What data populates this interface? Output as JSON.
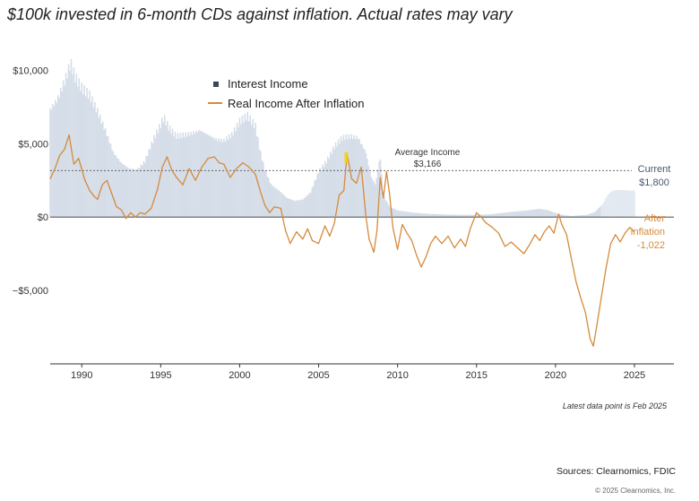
{
  "chart_data": {
    "type": "area",
    "title": "$100k invested in 6-month CDs against inflation. Actual rates may vary",
    "ylim": [
      -10000,
      11000
    ],
    "xlim": [
      1988,
      2027.5
    ],
    "y_ticks": [
      {
        "value": 10000,
        "label": "$10,000"
      },
      {
        "value": 5000,
        "label": "$5,000"
      },
      {
        "value": 0,
        "label": "$0"
      },
      {
        "value": -5000,
        "label": "−$5,000"
      }
    ],
    "x_ticks": [
      {
        "value": 1990,
        "label": "1990"
      },
      {
        "value": 1995,
        "label": "1995"
      },
      {
        "value": 2000,
        "label": "2000"
      },
      {
        "value": 2005,
        "label": "2005"
      },
      {
        "value": 2010,
        "label": "2010"
      },
      {
        "value": 2015,
        "label": "2015"
      },
      {
        "value": 2020,
        "label": "2020"
      },
      {
        "value": 2025,
        "label": "2025"
      }
    ],
    "legend": [
      "Interest Income",
      "Real Income After Inflation"
    ],
    "series": [
      {
        "name": "Interest Income",
        "color": "#d5dde8",
        "points": [
          [
            1988,
            7300
          ],
          [
            1988.5,
            8100
          ],
          [
            1989,
            9500
          ],
          [
            1989.3,
            10500
          ],
          [
            1989.6,
            9500
          ],
          [
            1990,
            8800
          ],
          [
            1990.5,
            8300
          ],
          [
            1991,
            7200
          ],
          [
            1991.5,
            5900
          ],
          [
            1992,
            4400
          ],
          [
            1992.5,
            3700
          ],
          [
            1993,
            3300
          ],
          [
            1993.5,
            3200
          ],
          [
            1994,
            3800
          ],
          [
            1994.5,
            5200
          ],
          [
            1995,
            6300
          ],
          [
            1995.2,
            6800
          ],
          [
            1995.5,
            6100
          ],
          [
            1996,
            5500
          ],
          [
            1996.5,
            5600
          ],
          [
            1997,
            5700
          ],
          [
            1997.5,
            5900
          ],
          [
            1998,
            5600
          ],
          [
            1998.5,
            5300
          ],
          [
            1999,
            5200
          ],
          [
            1999.5,
            5600
          ],
          [
            2000,
            6500
          ],
          [
            2000.5,
            6900
          ],
          [
            2001,
            6200
          ],
          [
            2001.3,
            4500
          ],
          [
            2001.6,
            3200
          ],
          [
            2002,
            2200
          ],
          [
            2002.5,
            1800
          ],
          [
            2003,
            1300
          ],
          [
            2003.5,
            1100
          ],
          [
            2004,
            1200
          ],
          [
            2004.5,
            1700
          ],
          [
            2005,
            3100
          ],
          [
            2005.5,
            3800
          ],
          [
            2006,
            4800
          ],
          [
            2006.5,
            5400
          ],
          [
            2007,
            5500
          ],
          [
            2007.5,
            5400
          ],
          [
            2008,
            4400
          ],
          [
            2008.3,
            2800
          ],
          [
            2008.6,
            2200
          ],
          [
            2008.9,
            4200
          ],
          [
            2009.1,
            1500
          ],
          [
            2009.5,
            700
          ],
          [
            2010,
            450
          ],
          [
            2011,
            300
          ],
          [
            2012,
            220
          ],
          [
            2013,
            180
          ],
          [
            2014,
            150
          ],
          [
            2015,
            150
          ],
          [
            2016,
            200
          ],
          [
            2017,
            330
          ],
          [
            2018,
            430
          ],
          [
            2019,
            560
          ],
          [
            2019.5,
            480
          ],
          [
            2020,
            280
          ],
          [
            2020.5,
            130
          ],
          [
            2021,
            70
          ],
          [
            2022,
            150
          ],
          [
            2022.5,
            350
          ],
          [
            2023,
            900
          ],
          [
            2023.3,
            1500
          ],
          [
            2023.6,
            1800
          ],
          [
            2024,
            1850
          ],
          [
            2025,
            1800
          ]
        ]
      },
      {
        "name": "Real Income After Inflation",
        "color": "#d48a3c",
        "points": [
          [
            1988,
            2600
          ],
          [
            1988.3,
            3300
          ],
          [
            1988.6,
            4200
          ],
          [
            1988.9,
            4600
          ],
          [
            1989.2,
            5600
          ],
          [
            1989.5,
            3600
          ],
          [
            1989.8,
            4000
          ],
          [
            1990.2,
            2500
          ],
          [
            1990.5,
            1800
          ],
          [
            1990.8,
            1400
          ],
          [
            1991,
            1200
          ],
          [
            1991.3,
            2200
          ],
          [
            1991.6,
            2500
          ],
          [
            1991.9,
            1600
          ],
          [
            1992.2,
            700
          ],
          [
            1992.5,
            500
          ],
          [
            1992.8,
            -100
          ],
          [
            1993.1,
            300
          ],
          [
            1993.4,
            0
          ],
          [
            1993.7,
            300
          ],
          [
            1994,
            200
          ],
          [
            1994.4,
            600
          ],
          [
            1994.8,
            1900
          ],
          [
            1995.1,
            3400
          ],
          [
            1995.4,
            4100
          ],
          [
            1995.7,
            3200
          ],
          [
            1996,
            2700
          ],
          [
            1996.4,
            2200
          ],
          [
            1996.8,
            3300
          ],
          [
            1997.2,
            2500
          ],
          [
            1997.6,
            3400
          ],
          [
            1998,
            4000
          ],
          [
            1998.4,
            4100
          ],
          [
            1998.7,
            3700
          ],
          [
            1999,
            3600
          ],
          [
            1999.4,
            2700
          ],
          [
            1999.8,
            3300
          ],
          [
            2000.2,
            3700
          ],
          [
            2000.6,
            3400
          ],
          [
            2001,
            2900
          ],
          [
            2001.3,
            1800
          ],
          [
            2001.6,
            800
          ],
          [
            2001.9,
            300
          ],
          [
            2002.2,
            700
          ],
          [
            2002.6,
            600
          ],
          [
            2002.9,
            -900
          ],
          [
            2003.2,
            -1800
          ],
          [
            2003.6,
            -1000
          ],
          [
            2004,
            -1500
          ],
          [
            2004.3,
            -800
          ],
          [
            2004.6,
            -1600
          ],
          [
            2005,
            -1800
          ],
          [
            2005.4,
            -600
          ],
          [
            2005.7,
            -1300
          ],
          [
            2006,
            -400
          ],
          [
            2006.3,
            1500
          ],
          [
            2006.6,
            1800
          ],
          [
            2006.8,
            4300
          ],
          [
            2007.1,
            2600
          ],
          [
            2007.4,
            2300
          ],
          [
            2007.7,
            3400
          ],
          [
            2008,
            0
          ],
          [
            2008.2,
            -1500
          ],
          [
            2008.5,
            -2400
          ],
          [
            2008.7,
            -900
          ],
          [
            2008.9,
            2700
          ],
          [
            2009.1,
            1300
          ],
          [
            2009.3,
            3100
          ],
          [
            2009.5,
            1500
          ],
          [
            2009.7,
            -700
          ],
          [
            2010,
            -2200
          ],
          [
            2010.3,
            -500
          ],
          [
            2010.6,
            -1100
          ],
          [
            2010.9,
            -1600
          ],
          [
            2011.2,
            -2600
          ],
          [
            2011.5,
            -3400
          ],
          [
            2011.8,
            -2700
          ],
          [
            2012.1,
            -1800
          ],
          [
            2012.4,
            -1300
          ],
          [
            2012.8,
            -1800
          ],
          [
            2013.2,
            -1300
          ],
          [
            2013.6,
            -2100
          ],
          [
            2014,
            -1500
          ],
          [
            2014.3,
            -2000
          ],
          [
            2014.6,
            -800
          ],
          [
            2015,
            300
          ],
          [
            2015.3,
            0
          ],
          [
            2015.6,
            -400
          ],
          [
            2016,
            -700
          ],
          [
            2016.4,
            -1100
          ],
          [
            2016.8,
            -2000
          ],
          [
            2017.2,
            -1700
          ],
          [
            2017.6,
            -2100
          ],
          [
            2018,
            -2500
          ],
          [
            2018.4,
            -1800
          ],
          [
            2018.7,
            -1200
          ],
          [
            2019,
            -1600
          ],
          [
            2019.3,
            -1000
          ],
          [
            2019.6,
            -600
          ],
          [
            2019.9,
            -1100
          ],
          [
            2020.2,
            200
          ],
          [
            2020.4,
            -500
          ],
          [
            2020.7,
            -1200
          ],
          [
            2021,
            -2800
          ],
          [
            2021.3,
            -4400
          ],
          [
            2021.6,
            -5500
          ],
          [
            2021.9,
            -6500
          ],
          [
            2022.2,
            -8300
          ],
          [
            2022.4,
            -8800
          ],
          [
            2022.6,
            -7500
          ],
          [
            2022.9,
            -5500
          ],
          [
            2023.2,
            -3500
          ],
          [
            2023.5,
            -1800
          ],
          [
            2023.8,
            -1200
          ],
          [
            2024.1,
            -1700
          ],
          [
            2024.4,
            -1100
          ],
          [
            2024.7,
            -700
          ],
          [
            2025,
            -1022
          ]
        ]
      }
    ],
    "average_line": {
      "value": 3166,
      "label_line1": "Average Income",
      "label_line2": "$3,166"
    },
    "current_label": {
      "line1": "Current",
      "line2": "$1,800"
    },
    "after_label": {
      "line1": "After",
      "line2": "Inflation",
      "line3": "-1,022"
    }
  },
  "note": "Latest data point is Feb 2025",
  "source": "Sources: Clearnomics, FDIC",
  "copyright": "© 2025 Clearnomics, Inc."
}
